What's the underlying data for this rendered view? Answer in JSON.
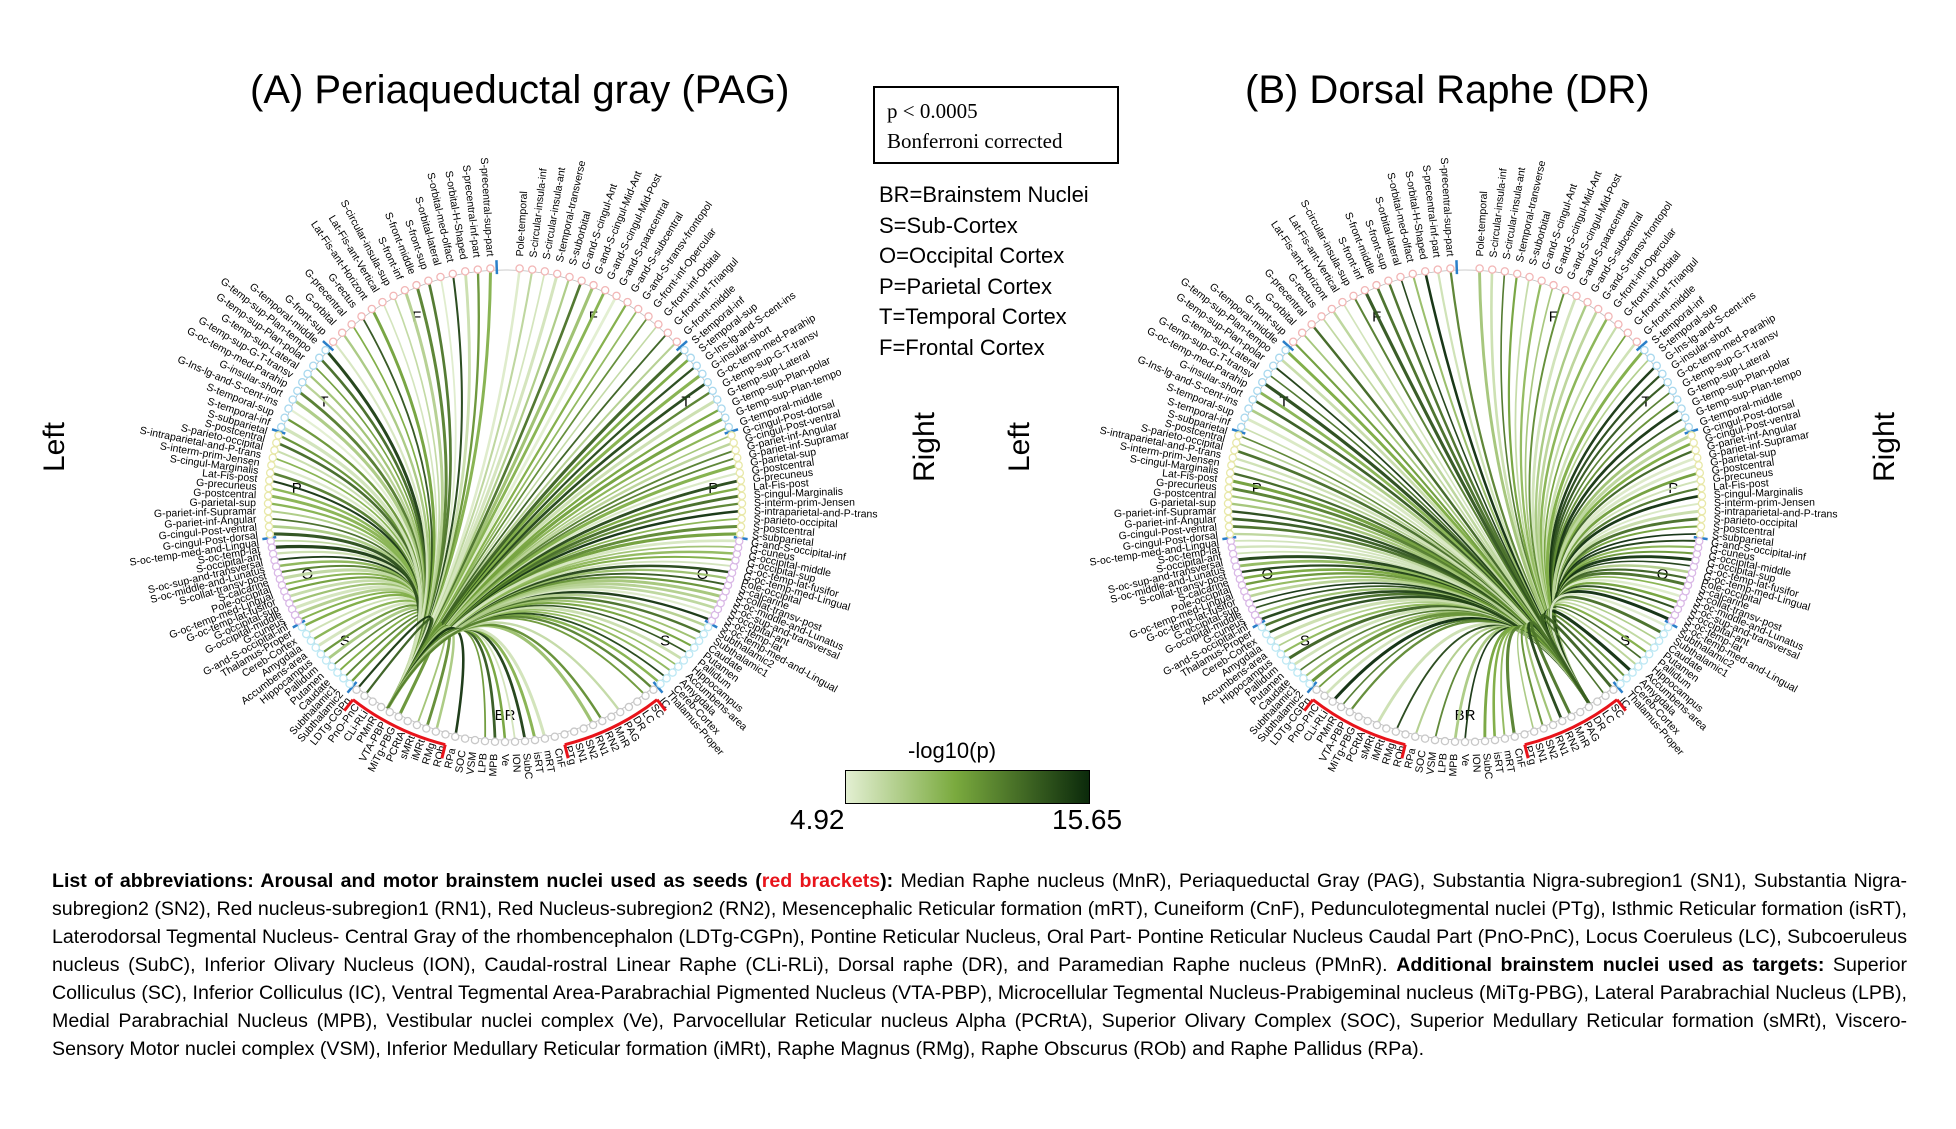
{
  "panels": [
    {
      "title": "(A) Periaqueductal gray (PAG)",
      "left_label": "Left",
      "right_label": "Right",
      "seed": "PAG"
    },
    {
      "title": "(B) Dorsal Raphe (DR)",
      "left_label": "Left",
      "right_label": "Right",
      "seed": "DR"
    }
  ],
  "stat_box": {
    "line1": "p < 0.0005",
    "line2": "Bonferroni corrected"
  },
  "legend": [
    "BR=Brainstem Nuclei",
    "S=Sub-Cortex",
    "O=Occipital Cortex",
    "P=Parietal Cortex",
    "T=Temporal Cortex",
    "F=Frontal Cortex"
  ],
  "sector_letters": [
    "F",
    "T",
    "P",
    "O",
    "S",
    "BR"
  ],
  "colorbar": {
    "label": "-log10(p)",
    "min": "4.92",
    "max": "15.65",
    "color_low": "#e3efd2",
    "color_mid": "#7aaa3e",
    "color_high": "#0b2a0b"
  },
  "colors": {
    "bracket": "#e8141b",
    "frontal_node": "#f2b6b6",
    "temporal_node": "#a8d8ee",
    "parietal_node": "#e8e8a8",
    "occipital_node": "#d9b8e6",
    "subcortex_node": "#bde8f4",
    "brainstem_node": "#c8c8c8",
    "tick": "#2a7fc9"
  },
  "node_labels": {
    "frontal_left": [
      "S-precentral-sup-part",
      "S-precentral-inf-part",
      "S-orbital-H-Shaped",
      "S-orbital-med-olfact",
      "S-orbital-lateral",
      "S-front-sup",
      "S-front-middle",
      "S-front-inf",
      "S-circular-insula-sup",
      "Lat-Fis-ant-Vertical",
      "Lat-Fis-ant-Horizont",
      "G-rectus",
      "G-precentral",
      "G-orbital",
      "G-front-sup",
      "G-front-middle",
      "G-front-inf-Triangul",
      "G-front-inf-Orbital",
      "G-front-inf-Opercular",
      "G-and-S-transv-frontopol",
      "G-and-S-subcentral",
      "G-and-S-paracentral",
      "G-and-S-cingul-Mid-Post",
      "G-and-S-cingul-Mid-Ant",
      "G-and-S-cingul-Ant",
      "S-suborbital",
      "S-temporal-transverse",
      "S-circular-insula-ant",
      "S-circular-insula-inf",
      "Pole-temporal"
    ],
    "temporal_left": [
      "G-temporal-middle",
      "G-temp-sup-Plan-tempo",
      "G-temp-sup-Plan-polar",
      "G-temp-sup-Lateral",
      "G-temp-sup-G-T-transv",
      "G-oc-temp-med-Parahip",
      "G-insular-short",
      "G-Ins-lg-and-S-cent-ins",
      "S-temporal-sup",
      "S-temporal-inf"
    ],
    "parietal_left": [
      "S-subparietal",
      "S-postcentral",
      "S-parieto-occipital",
      "S-intraparietal-and-P-trans",
      "S-interm-prim-Jensen",
      "S-cingul-Marginalis",
      "Lat-Fis-post",
      "G-precuneus",
      "G-postcentral",
      "G-parietal-sup",
      "G-pariet-inf-Supramar",
      "G-pariet-inf-Angular",
      "G-cingul-Post-ventral",
      "G-cingul-Post-dorsal"
    ],
    "occipital_left": [
      "S-oc-temp-med-and-Lingual",
      "S-oc-temp-lat",
      "S-occipital-ant",
      "S-oc-sup-and-transversal",
      "S-oc-middle-and-Lunatus",
      "S-collat-transv-post",
      "S-calcarine",
      "Pole-occipital",
      "G-oc-temp-med-Lingual",
      "G-oc-temp-lat-fusifor",
      "G-occipital-sup",
      "G-occipital-middle",
      "G-cuneus",
      "G-and-S-occipital-inf"
    ],
    "subcortex_left": [
      "Thalamus-Proper",
      "Cereb-Cortex",
      "Amygdala",
      "Accumbens-area",
      "Hippocampus",
      "Pallidum",
      "Putamen",
      "Caudate",
      "Subthalamic1",
      "Subthalamic2"
    ],
    "brainstem": [
      "LDTg-CGPn",
      "PnO-PnC",
      "CLi-RLi",
      "PMnR",
      "VTA-PBP",
      "MiTg-PBG",
      "PCRtA",
      "sMRt",
      "iMRt",
      "RMg",
      "ROb",
      "RPa",
      "SOC",
      "VSM",
      "LPB",
      "MPB",
      "Ve",
      "ION",
      "SubC",
      "isRT",
      "mRT",
      "CnF",
      "PTg",
      "SN1",
      "SN2",
      "RN1",
      "RN2",
      "MnR",
      "PAG",
      "DR",
      "LC",
      "SC",
      "IC"
    ]
  },
  "caption": {
    "intro_bold": "List of abbreviations: Arousal and motor brainstem nuclei used as seeds (",
    "red_text": "red brackets",
    "after_red_bold": "):",
    "seeds_text": " Median Raphe nucleus (MnR), Periaqueductal Gray (PAG), Substantia Nigra-subregion1 (SN1), Substantia Nigra-subregion2 (SN2), Red nucleus-subregion1 (RN1), Red Nucleus-subregion2 (RN2), Mesencephalic Reticular formation (mRT), Cuneiform (CnF), Pedunculotegmental nuclei (PTg), Isthmic Reticular formation (isRT), Laterodorsal Tegmental Nucleus- Central Gray of the rhombencephalon (LDTg-CGPn), Pontine Reticular Nucleus, Oral Part- Pontine Reticular Nucleus Caudal Part (PnO-PnC), Locus Coeruleus (LC), Subcoeruleus nucleus (SubC), Inferior Olivary Nucleus (ION), Caudal-rostral Linear Raphe (CLi-RLi), Dorsal raphe (DR), and Paramedian Raphe nucleus (PMnR). ",
    "targets_bold": "Additional brainstem nuclei used as targets:",
    "targets_text": " Superior Colliculus (SC), Inferior Colliculus (IC), Ventral Tegmental Area-Parabrachial Pigmented Nucleus (VTA-PBP), Microcellular Tegmental Nucleus-Prabigeminal nucleus (MiTg-PBG), Lateral Parabrachial Nucleus (LPB), Medial Parabrachial Nucleus (MPB), Vestibular nuclei complex (Ve), Parvocellular Reticular nucleus Alpha (PCRtA), Superior Olivary Complex (SOC), Superior Medullary Reticular formation (sMRt), Viscero-Sensory Motor nuclei complex (VSM), Inferior Medullary Reticular formation (iMRt), Raphe Magnus (RMg), Raphe Obscurus (ROb) and Raphe Pallidus (RPa)."
  }
}
